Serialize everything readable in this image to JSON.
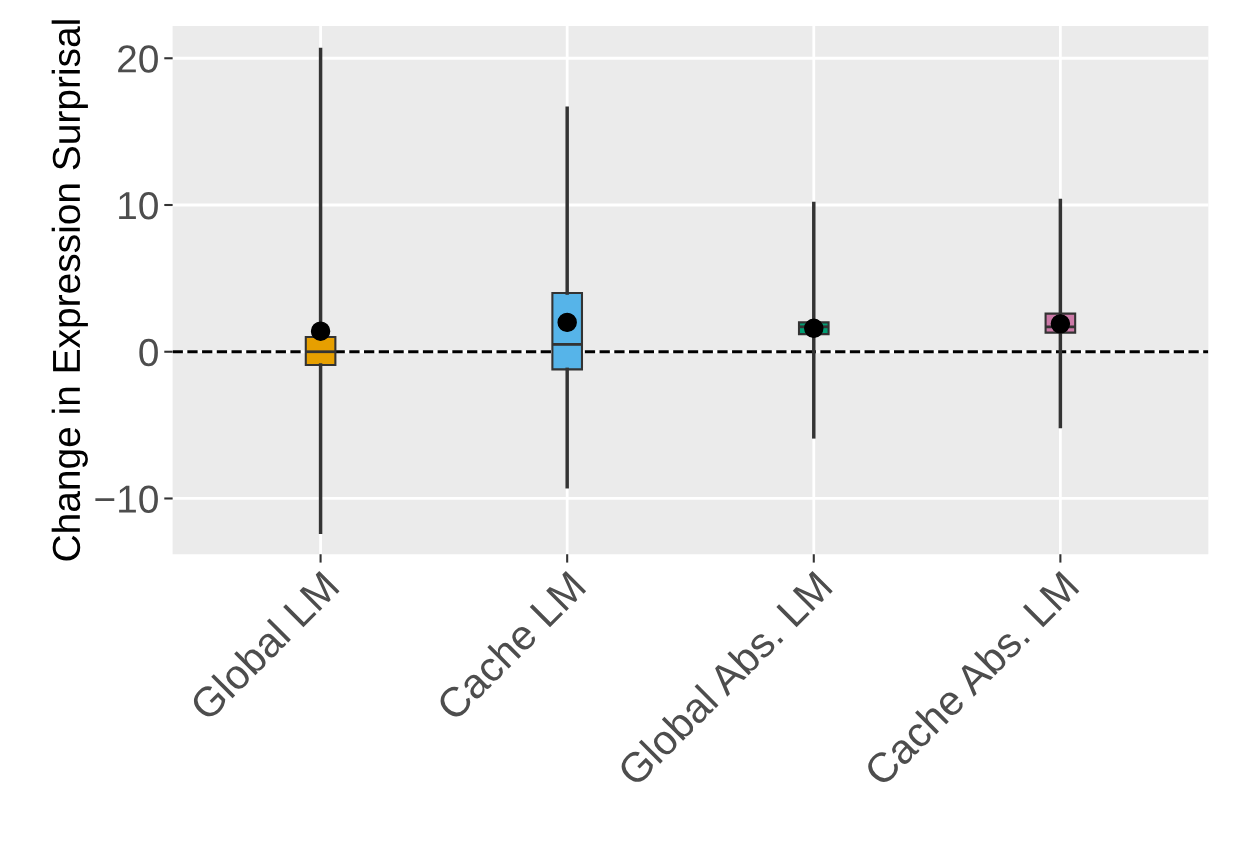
{
  "chart_data": {
    "type": "box",
    "ylabel": "Change in Expression Surprisal",
    "categories": [
      "Global LM",
      "Cache LM",
      "Global Abs. LM",
      "Cache Abs. LM"
    ],
    "colors": [
      "#e69f00",
      "#56b4e9",
      "#009e73",
      "#cc79a7"
    ],
    "boxes": [
      {
        "low": -12.3,
        "q1": -0.9,
        "median": 0,
        "q3": 1,
        "high": 20.6,
        "mean": 1.4
      },
      {
        "low": -9.2,
        "q1": -1.2,
        "median": 0.5,
        "q3": 4,
        "high": 16.6,
        "mean": 2.0
      },
      {
        "low": -5.8,
        "q1": 1.2,
        "median": 1.7,
        "q3": 2.0,
        "high": 10.1,
        "mean": 1.6
      },
      {
        "low": -5.1,
        "q1": 1.3,
        "median": 1.7,
        "q3": 2.6,
        "high": 10.3,
        "mean": 1.9
      }
    ],
    "ylim": [
      -13.8,
      22.2
    ],
    "yticks": [
      -10,
      0,
      10,
      20
    ],
    "grid": true,
    "ref_lines": [
      {
        "axis": "y",
        "value": 0,
        "color": "#000000",
        "line_style": "dashed"
      }
    ]
  }
}
